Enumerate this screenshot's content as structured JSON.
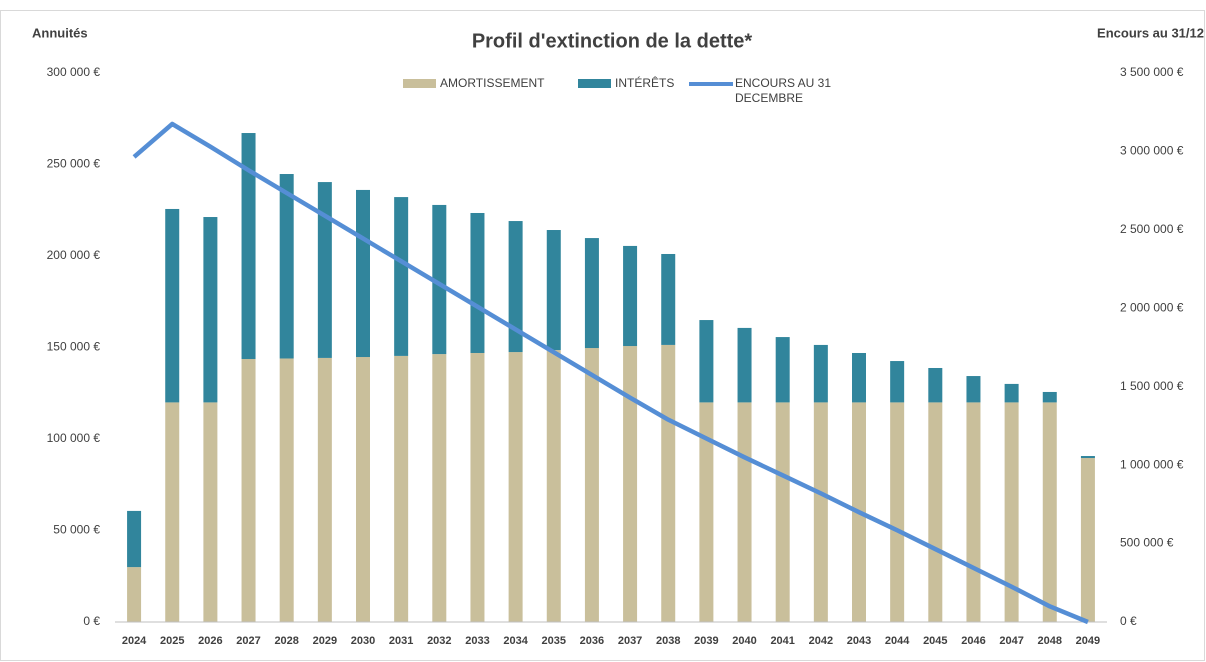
{
  "chart_data": {
    "type": "bar",
    "stacked": true,
    "title": "Profil d'extinction de la dette*",
    "y_axis_label": "Annuités",
    "y2_axis_label": "Encours au 31/12",
    "categories": [
      "2024",
      "2025",
      "2026",
      "2027",
      "2028",
      "2029",
      "2030",
      "2031",
      "2032",
      "2033",
      "2034",
      "2035",
      "2036",
      "2037",
      "2038",
      "2039",
      "2040",
      "2041",
      "2042",
      "2043",
      "2044",
      "2045",
      "2046",
      "2047",
      "2048",
      "2049"
    ],
    "series": [
      {
        "name": "AMORTISSEMENT",
        "type": "bar",
        "color": "#c9bf9b",
        "values": [
          30000,
          120000,
          120000,
          143700,
          144000,
          144300,
          144800,
          145400,
          146400,
          147000,
          147500,
          148600,
          149700,
          150800,
          151400,
          120000,
          120000,
          120000,
          120000,
          120000,
          120000,
          120000,
          120000,
          120000,
          120000,
          89600
        ]
      },
      {
        "name": "INTÉRÊTS",
        "type": "bar",
        "color": "#31859c",
        "values": [
          30700,
          105700,
          101300,
          123500,
          100800,
          96100,
          91300,
          86800,
          81500,
          76500,
          71600,
          65600,
          60100,
          54700,
          49700,
          45000,
          40700,
          35700,
          31400,
          27000,
          22600,
          18800,
          14400,
          10100,
          5700,
          1100
        ]
      },
      {
        "name": "ENCOURS AU 31 DECEMBRE",
        "type": "line",
        "axis": "y2",
        "color": "#558ed5",
        "values": [
          2965000,
          3175000,
          3030000,
          2880000,
          2735000,
          2590000,
          2445000,
          2300000,
          2155000,
          2010000,
          1865000,
          1720000,
          1575000,
          1430000,
          1290000,
          1170000,
          1050000,
          935000,
          820000,
          700000,
          585000,
          465000,
          345000,
          225000,
          100000,
          0
        ]
      }
    ],
    "ylim": [
      0,
      300000
    ],
    "yticks": [
      {
        "value": 0,
        "label": "0 €"
      },
      {
        "value": 50000,
        "label": "50 000 €"
      },
      {
        "value": 100000,
        "label": "100 000 €"
      },
      {
        "value": 150000,
        "label": "150 000 €"
      },
      {
        "value": 200000,
        "label": "200 000 €"
      },
      {
        "value": 250000,
        "label": "250 000 €"
      },
      {
        "value": 300000,
        "label": "300 000 €"
      }
    ],
    "y2lim": [
      0,
      3500000
    ],
    "y2ticks": [
      {
        "value": 0,
        "label": "0 €"
      },
      {
        "value": 500000,
        "label": "500 000 €"
      },
      {
        "value": 1000000,
        "label": "1 000 000 €"
      },
      {
        "value": 1500000,
        "label": "1 500 000 €"
      },
      {
        "value": 2000000,
        "label": "2 000 000 €"
      },
      {
        "value": 2500000,
        "label": "2 500 000 €"
      },
      {
        "value": 3000000,
        "label": "3 000 000 €"
      },
      {
        "value": 3500000,
        "label": "3 500 000 €"
      }
    ],
    "grid": false,
    "legend": "top"
  }
}
